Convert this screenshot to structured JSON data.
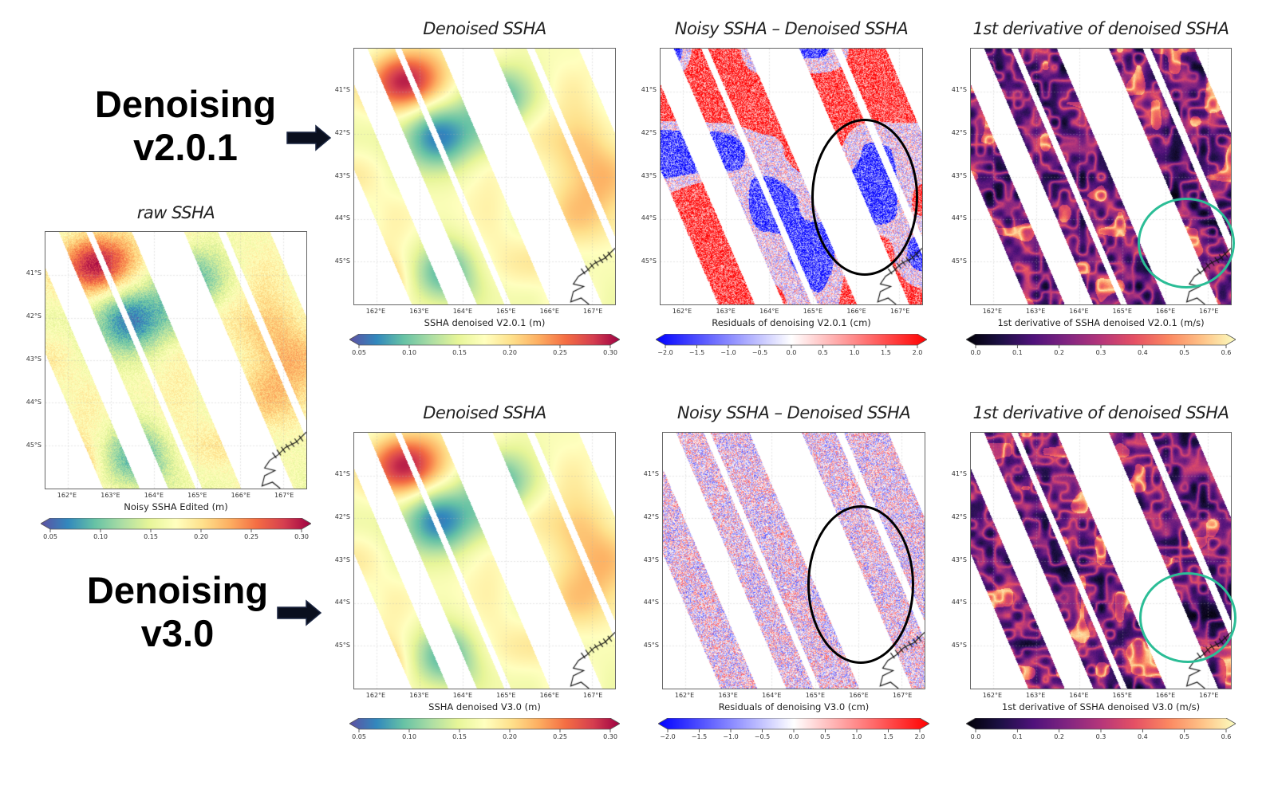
{
  "labels": {
    "v201": {
      "line1": "Denoising",
      "line2": "v2.0.1"
    },
    "v30": {
      "line1": "Denoising",
      "line2": "v3.0"
    }
  },
  "colormaps": {
    "spectral": [
      "#5e4fa2",
      "#3288bd",
      "#66c2a5",
      "#abdda4",
      "#e6f598",
      "#ffffbf",
      "#fee08b",
      "#fdae61",
      "#f46d43",
      "#d53e4f",
      "#9e0142"
    ],
    "bwr": [
      "#0000ff",
      "#8080ff",
      "#ffffff",
      "#ff8080",
      "#ff0000"
    ],
    "magma": [
      "#000004",
      "#1c1044",
      "#4f127b",
      "#812581",
      "#b5367a",
      "#e55064",
      "#fb8761",
      "#fec287",
      "#fcfdbf"
    ]
  },
  "annotation_colors": {
    "ellipse": "#000000",
    "circle": "#2bbd96"
  },
  "axes": {
    "lat_ticks": [
      "41°S",
      "42°S",
      "43°S",
      "44°S",
      "45°S"
    ],
    "lon_ticks": [
      "162°E",
      "163°E",
      "164°E",
      "165°E",
      "166°E",
      "167°E"
    ]
  },
  "panels": {
    "raw": {
      "title": "raw SSHA",
      "xlabel": "Noisy SSHA Edited (m)",
      "cbar_ticks": [
        "0.05",
        "0.10",
        "0.15",
        "0.20",
        "0.25",
        "0.30"
      ],
      "cmap": "spectral"
    },
    "den201": {
      "title": "Denoised SSHA",
      "xlabel": "SSHA denoised V2.0.1 (m)",
      "cbar_ticks": [
        "0.05",
        "0.10",
        "0.15",
        "0.20",
        "0.25",
        "0.30"
      ],
      "cmap": "spectral"
    },
    "res201": {
      "title": "Noisy SSHA – Denoised SSHA",
      "xlabel": "Residuals of denoising V2.0.1 (cm)",
      "cbar_ticks": [
        "−2.0",
        "−1.5",
        "−1.0",
        "−0.5",
        "0.0",
        "0.5",
        "1.0",
        "1.5",
        "2.0"
      ],
      "cmap": "bwr"
    },
    "der201": {
      "title": "1st derivative of denoised SSHA",
      "xlabel": "1st derivative of SSHA denoised V2.0.1 (m/s)",
      "cbar_ticks": [
        "0.0",
        "0.1",
        "0.2",
        "0.3",
        "0.4",
        "0.5",
        "0.6"
      ],
      "cmap": "magma"
    },
    "den30": {
      "title": "Denoised SSHA",
      "xlabel": "SSHA denoised V3.0 (m)",
      "cbar_ticks": [
        "0.05",
        "0.10",
        "0.15",
        "0.20",
        "0.25",
        "0.30"
      ],
      "cmap": "spectral"
    },
    "res30": {
      "title": "Noisy SSHA – Denoised SSHA",
      "xlabel": "Residuals of denoising V3.0 (cm)",
      "cbar_ticks": [
        "−2.0",
        "−1.5",
        "−1.0",
        "−0.5",
        "0.0",
        "0.5",
        "1.0",
        "1.5",
        "2.0"
      ],
      "cmap": "bwr"
    },
    "der30": {
      "title": "1st derivative of denoised SSHA",
      "xlabel": "1st derivative of SSHA denoised V3.0 (m/s)",
      "cbar_ticks": [
        "0.0",
        "0.1",
        "0.2",
        "0.3",
        "0.4",
        "0.5",
        "0.6"
      ],
      "cmap": "magma"
    }
  }
}
